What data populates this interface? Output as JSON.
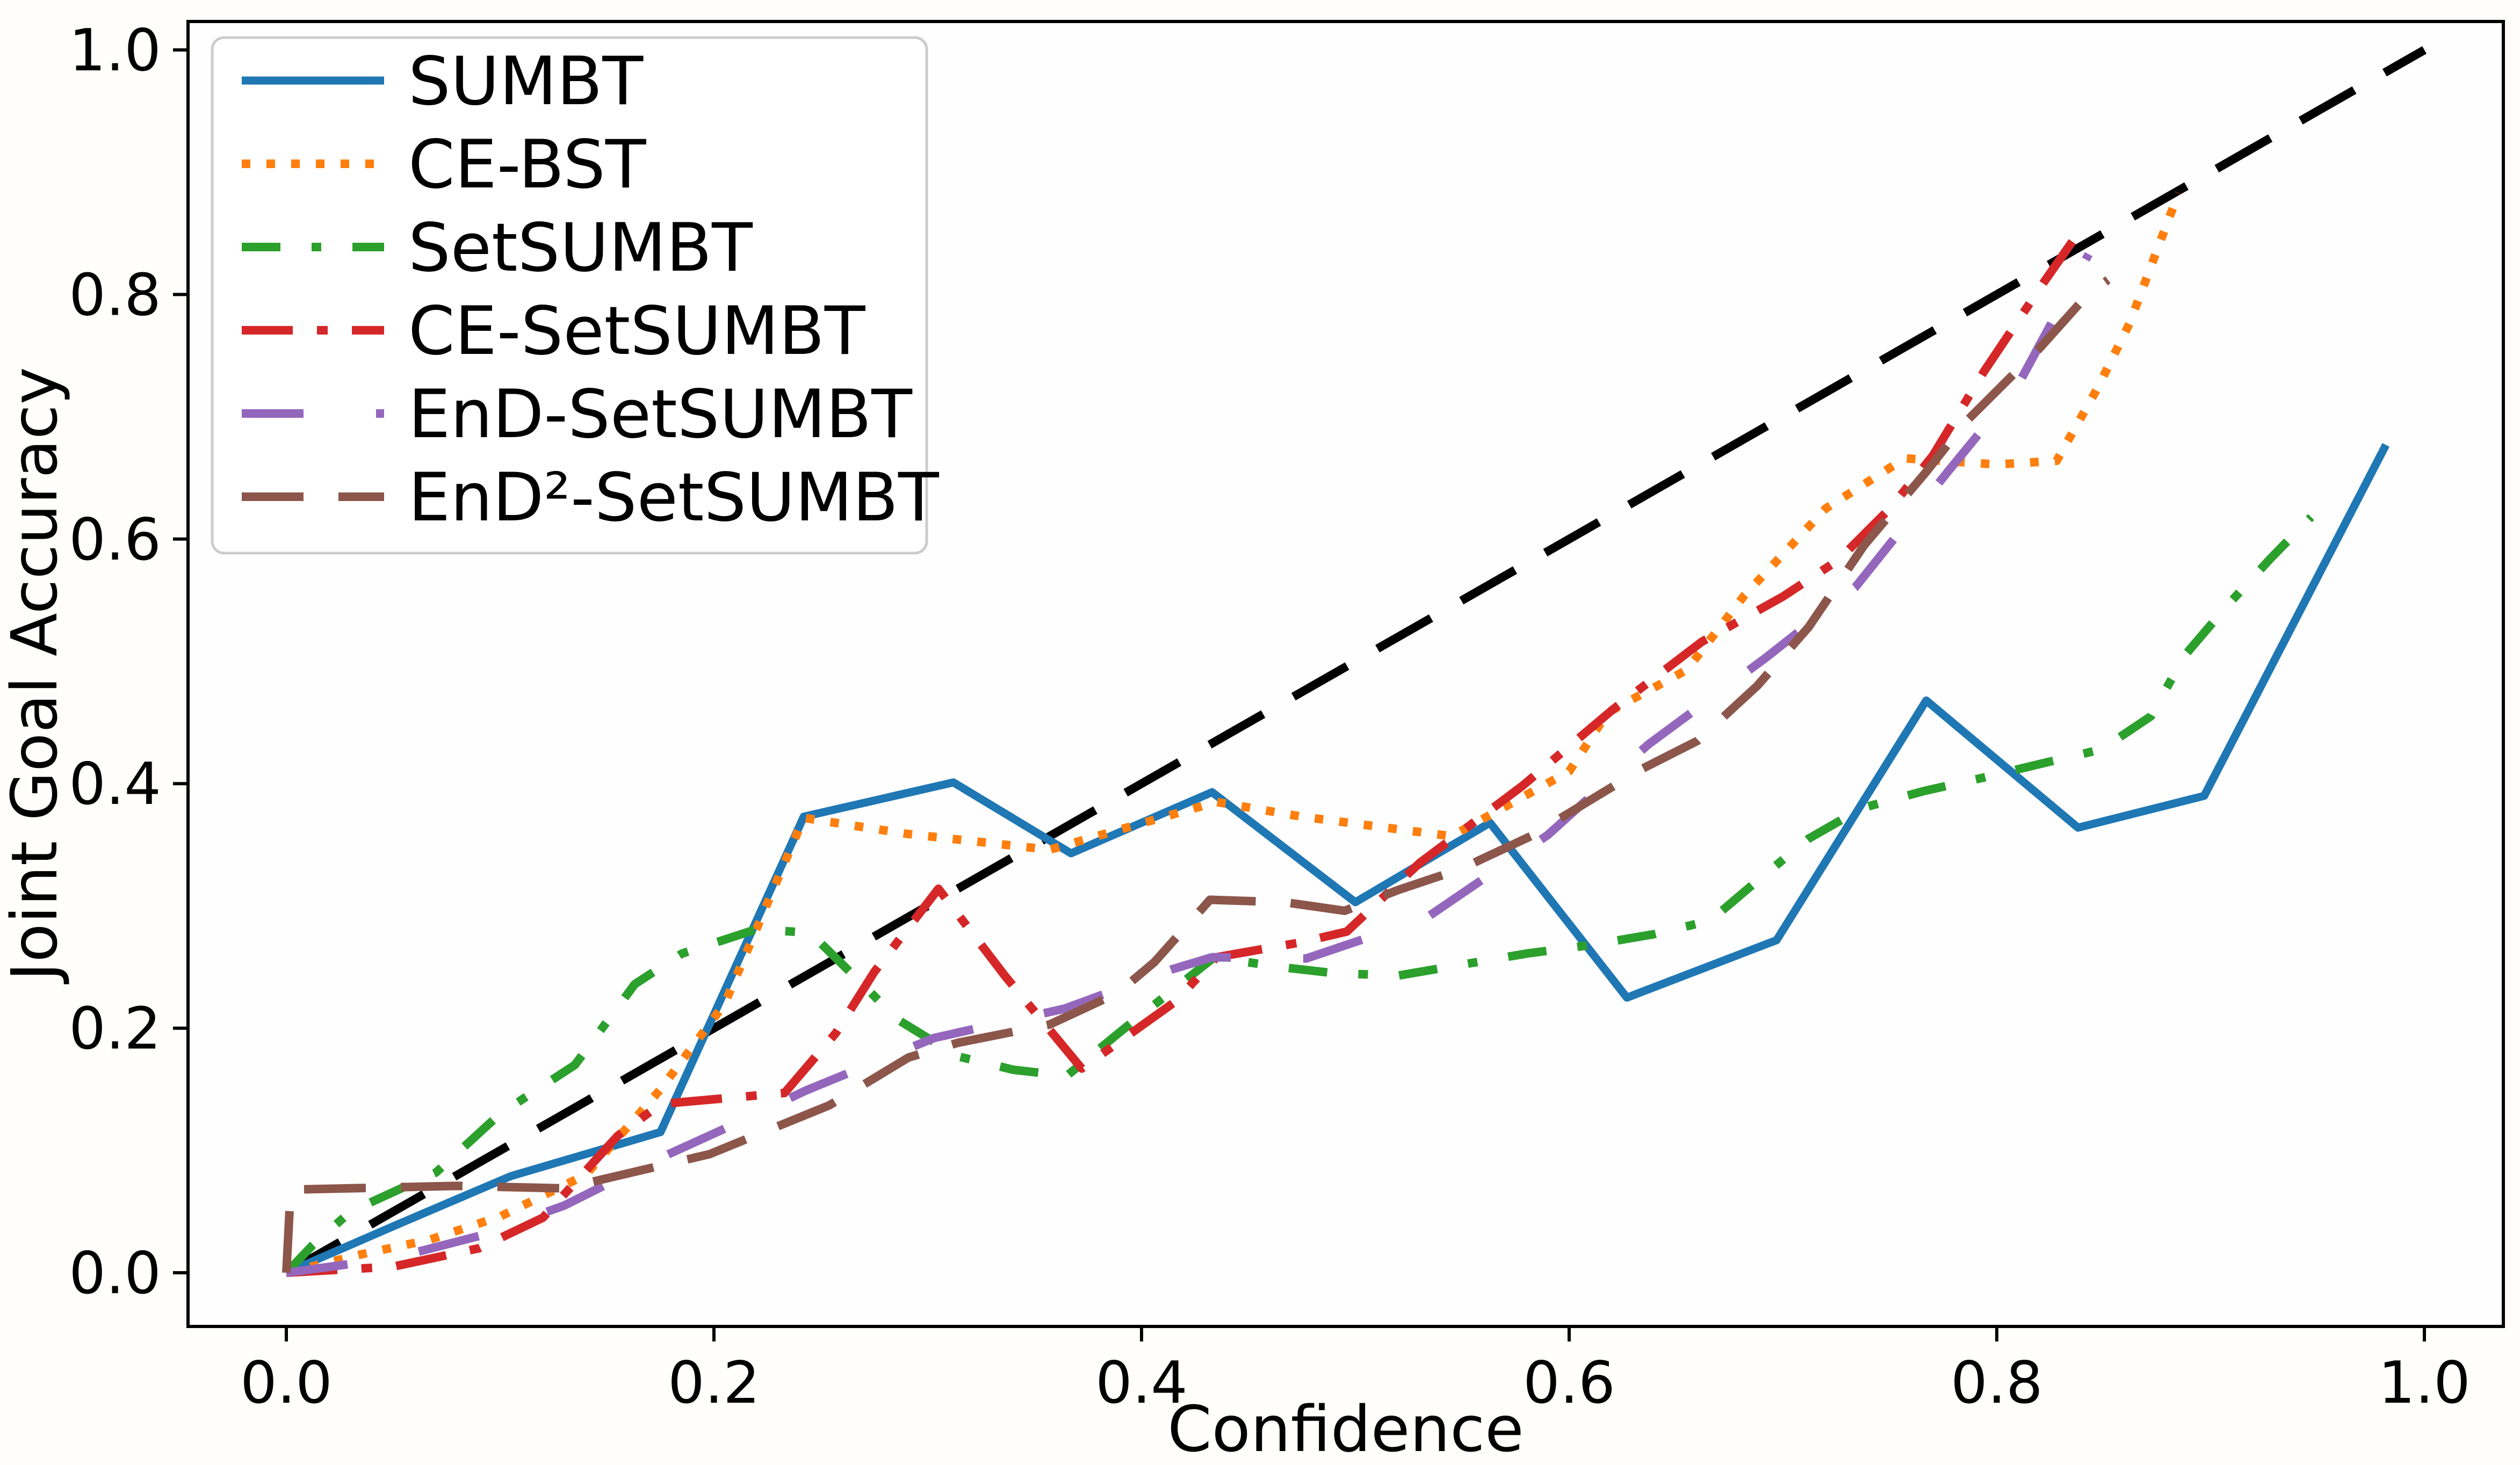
{
  "figure": {
    "xlabel": "Confidence",
    "ylabel": "Joint Goal Accuracy"
  },
  "chart_data": {
    "type": "line",
    "title": "",
    "xlabel": "Confidence",
    "ylabel": "Joint Goal Accuracy",
    "xlim": [
      -0.046,
      1.037
    ],
    "ylim": [
      -0.044,
      1.023
    ],
    "grid": false,
    "legend_position": "upper left",
    "x_ticks": [
      "0.0",
      "0.2",
      "0.4",
      "0.6",
      "0.8",
      "1.0"
    ],
    "x_tick_values": [
      0.0,
      0.2,
      0.4,
      0.6,
      0.8,
      1.0
    ],
    "y_ticks": [
      "0.0",
      "0.2",
      "0.4",
      "0.6",
      "0.8",
      "1.0"
    ],
    "y_tick_values": [
      0.0,
      0.2,
      0.4,
      0.6,
      0.8,
      1.0
    ],
    "series": [
      {
        "name": "ideal-calibration",
        "label": "",
        "in_legend": false,
        "color": "#000000",
        "style": "dashed",
        "points": [
          [
            0.0,
            0.0
          ],
          [
            1.0,
            1.0
          ]
        ]
      },
      {
        "name": "SUMBT",
        "label": "SUMBT",
        "in_legend": true,
        "color": "#1f77b4",
        "style": "solid",
        "points": [
          [
            0.0,
            0.0
          ],
          [
            0.05,
            0.038
          ],
          [
            0.105,
            0.079
          ],
          [
            0.175,
            0.115
          ],
          [
            0.242,
            0.373
          ],
          [
            0.312,
            0.401
          ],
          [
            0.367,
            0.343
          ],
          [
            0.433,
            0.393
          ],
          [
            0.5,
            0.303
          ],
          [
            0.563,
            0.368
          ],
          [
            0.627,
            0.225
          ],
          [
            0.697,
            0.272
          ],
          [
            0.767,
            0.468
          ],
          [
            0.838,
            0.364
          ],
          [
            0.897,
            0.39
          ],
          [
            0.982,
            0.677
          ]
        ]
      },
      {
        "name": "CE-BST",
        "label": "CE-BST",
        "in_legend": true,
        "color": "#ff7f0e",
        "style": "dotted",
        "points": [
          [
            0.0,
            0.0
          ],
          [
            0.035,
            0.015
          ],
          [
            0.067,
            0.027
          ],
          [
            0.1,
            0.046
          ],
          [
            0.14,
            0.08
          ],
          [
            0.175,
            0.15
          ],
          [
            0.205,
            0.22
          ],
          [
            0.242,
            0.372
          ],
          [
            0.29,
            0.359
          ],
          [
            0.357,
            0.346
          ],
          [
            0.435,
            0.385
          ],
          [
            0.475,
            0.373
          ],
          [
            0.545,
            0.357
          ],
          [
            0.6,
            0.41
          ],
          [
            0.618,
            0.458
          ],
          [
            0.655,
            0.493
          ],
          [
            0.682,
            0.554
          ],
          [
            0.72,
            0.625
          ],
          [
            0.757,
            0.666
          ],
          [
            0.8,
            0.661
          ],
          [
            0.828,
            0.664
          ],
          [
            0.847,
            0.723
          ],
          [
            0.862,
            0.776
          ],
          [
            0.885,
            0.883
          ]
        ]
      },
      {
        "name": "SetSUMBT",
        "label": "SetSUMBT",
        "in_legend": true,
        "color": "#2ca02c",
        "style": "loosely-dashdot",
        "points": [
          [
            0.0,
            0.0
          ],
          [
            0.012,
            0.022
          ],
          [
            0.03,
            0.05
          ],
          [
            0.07,
            0.082
          ],
          [
            0.1,
            0.13
          ],
          [
            0.135,
            0.17
          ],
          [
            0.163,
            0.236
          ],
          [
            0.185,
            0.261
          ],
          [
            0.22,
            0.281
          ],
          [
            0.245,
            0.278
          ],
          [
            0.266,
            0.242
          ],
          [
            0.286,
            0.207
          ],
          [
            0.314,
            0.177
          ],
          [
            0.34,
            0.166
          ],
          [
            0.365,
            0.161
          ],
          [
            0.39,
            0.197
          ],
          [
            0.434,
            0.258
          ],
          [
            0.465,
            0.25
          ],
          [
            0.49,
            0.245
          ],
          [
            0.52,
            0.243
          ],
          [
            0.55,
            0.252
          ],
          [
            0.58,
            0.261
          ],
          [
            0.61,
            0.268
          ],
          [
            0.64,
            0.277
          ],
          [
            0.666,
            0.288
          ],
          [
            0.689,
            0.322
          ],
          [
            0.712,
            0.355
          ],
          [
            0.737,
            0.38
          ],
          [
            0.766,
            0.394
          ],
          [
            0.794,
            0.405
          ],
          [
            0.82,
            0.416
          ],
          [
            0.849,
            0.428
          ],
          [
            0.872,
            0.455
          ],
          [
            0.888,
            0.505
          ],
          [
            0.908,
            0.546
          ],
          [
            0.928,
            0.584
          ],
          [
            0.947,
            0.618
          ]
        ]
      },
      {
        "name": "CE-SetSUMBT",
        "label": "CE-SetSUMBT",
        "in_legend": true,
        "color": "#d62728",
        "style": "dashdot",
        "points": [
          [
            0.0,
            0.0
          ],
          [
            0.05,
            0.005
          ],
          [
            0.09,
            0.02
          ],
          [
            0.12,
            0.045
          ],
          [
            0.155,
            0.112
          ],
          [
            0.175,
            0.138
          ],
          [
            0.233,
            0.147
          ],
          [
            0.257,
            0.196
          ],
          [
            0.275,
            0.246
          ],
          [
            0.305,
            0.314
          ],
          [
            0.336,
            0.243
          ],
          [
            0.372,
            0.167
          ],
          [
            0.416,
            0.222
          ],
          [
            0.435,
            0.258
          ],
          [
            0.474,
            0.27
          ],
          [
            0.496,
            0.279
          ],
          [
            0.53,
            0.335
          ],
          [
            0.578,
            0.398
          ],
          [
            0.62,
            0.46
          ],
          [
            0.662,
            0.516
          ],
          [
            0.7,
            0.553
          ],
          [
            0.726,
            0.583
          ],
          [
            0.75,
            0.625
          ],
          [
            0.77,
            0.668
          ],
          [
            0.794,
            0.737
          ],
          [
            0.822,
            0.81
          ],
          [
            0.84,
            0.855
          ]
        ]
      },
      {
        "name": "EnD-SetSUMBT",
        "label": "EnD-SetSUMBT",
        "in_legend": true,
        "color": "#9467bd",
        "style": "loosely-dashed",
        "points": [
          [
            0.0,
            0.0
          ],
          [
            0.05,
            0.012
          ],
          [
            0.09,
            0.03
          ],
          [
            0.13,
            0.055
          ],
          [
            0.17,
            0.09
          ],
          [
            0.214,
            0.125
          ],
          [
            0.243,
            0.149
          ],
          [
            0.303,
            0.192
          ],
          [
            0.364,
            0.216
          ],
          [
            0.414,
            0.248
          ],
          [
            0.433,
            0.258
          ],
          [
            0.477,
            0.257
          ],
          [
            0.533,
            0.29
          ],
          [
            0.59,
            0.358
          ],
          [
            0.637,
            0.432
          ],
          [
            0.692,
            0.503
          ],
          [
            0.734,
            0.561
          ],
          [
            0.778,
            0.657
          ],
          [
            0.809,
            0.723
          ],
          [
            0.843,
            0.833
          ]
        ]
      },
      {
        "name": "EnD2-SetSUMBT",
        "label": "EnD²-SetSUMBT",
        "in_legend": true,
        "color": "#8c564b",
        "style": "dashed",
        "points": [
          [
            0.0,
            0.0
          ],
          [
            0.002,
            0.068
          ],
          [
            0.08,
            0.071
          ],
          [
            0.13,
            0.069
          ],
          [
            0.198,
            0.097
          ],
          [
            0.254,
            0.137
          ],
          [
            0.291,
            0.176
          ],
          [
            0.314,
            0.188
          ],
          [
            0.357,
            0.203
          ],
          [
            0.389,
            0.229
          ],
          [
            0.406,
            0.254
          ],
          [
            0.432,
            0.305
          ],
          [
            0.467,
            0.303
          ],
          [
            0.495,
            0.296
          ],
          [
            0.52,
            0.313
          ],
          [
            0.549,
            0.33
          ],
          [
            0.582,
            0.357
          ],
          [
            0.6,
            0.376
          ],
          [
            0.634,
            0.412
          ],
          [
            0.66,
            0.435
          ],
          [
            0.688,
            0.48
          ],
          [
            0.712,
            0.528
          ],
          [
            0.738,
            0.595
          ],
          [
            0.767,
            0.655
          ],
          [
            0.785,
            0.695
          ],
          [
            0.82,
            0.756
          ],
          [
            0.842,
            0.799
          ],
          [
            0.852,
            0.812
          ]
        ]
      }
    ]
  }
}
